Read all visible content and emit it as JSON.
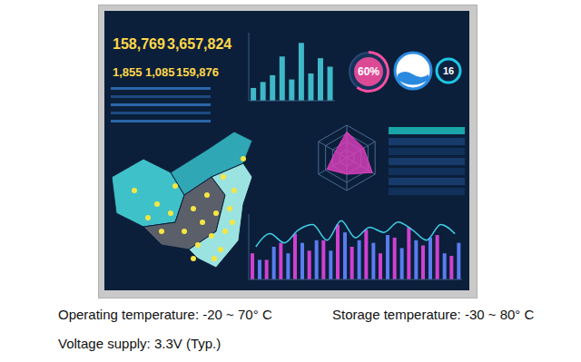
{
  "screen": {
    "kpis": {
      "big": [
        "158,769",
        "3,657,824"
      ],
      "small": [
        "1,855",
        "1,085",
        "159,876"
      ]
    },
    "gauges": [
      {
        "label": "60%",
        "value": 60,
        "color": "#ff4fa0"
      },
      {
        "label": "16",
        "color": "#1ec8e8"
      }
    ]
  },
  "chart_data": [
    {
      "type": "bar",
      "categories": [
        null,
        null,
        null,
        null,
        null,
        null,
        null,
        null,
        null
      ],
      "values": [
        1.5,
        2.2,
        3.0,
        5.2,
        2.5,
        6.8,
        3.2,
        5.0,
        4.0
      ],
      "color": "#3fb8c8",
      "ylim": [
        0,
        8
      ],
      "tick_labels": false
    },
    {
      "type": "radar",
      "categories": [
        null,
        null,
        null,
        null,
        null,
        null
      ],
      "values": [
        80,
        60,
        90,
        50,
        70,
        40
      ],
      "color": "#e040c0",
      "ylim": [
        0,
        100
      ],
      "tick_labels": false
    },
    {
      "type": "bar",
      "categories": [
        null,
        null,
        null,
        null,
        null,
        null,
        null,
        null,
        null,
        null,
        null,
        null,
        null,
        null,
        null
      ],
      "series": [
        {
          "color": "#d040d0",
          "values": [
            2.0,
            1.5,
            2.8,
            3.5,
            2.2,
            3.0,
            4.2,
            2.5,
            3.8,
            2.0,
            3.2,
            4.0,
            2.6,
            3.4,
            1.8
          ]
        },
        {
          "color": "#5a7cf0",
          "values": [
            1.5,
            2.5,
            2.0,
            2.8,
            3.0,
            2.2,
            3.6,
            3.0,
            2.8,
            3.4,
            2.4,
            3.0,
            3.2,
            2.0,
            2.8
          ]
        },
        {
          "type": "line",
          "color": "#40d0e8",
          "values": [
            2.5,
            3.5,
            2.8,
            3.8,
            4.2,
            3.0,
            4.5,
            3.2,
            4.0,
            3.6,
            4.4,
            3.8,
            3.0,
            4.2,
            3.5
          ]
        }
      ],
      "ylim": [
        0,
        5
      ],
      "tick_labels": false
    }
  ],
  "caption": [
    [
      "Operating temperature: -20 ~ 70° C",
      "Storage temperature: -30 ~ 80° C"
    ],
    [
      "Voltage supply:  3.3V (Typ.)"
    ]
  ]
}
